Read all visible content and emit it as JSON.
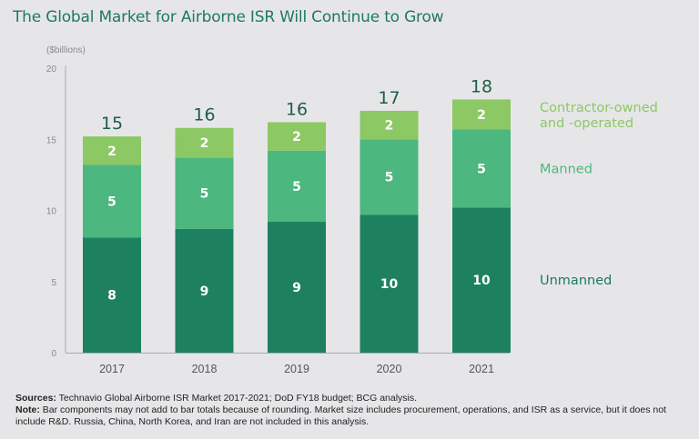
{
  "chart_data": {
    "type": "bar",
    "stacked": true,
    "title": "The Global Market for Airborne ISR Will Continue to Grow",
    "ylabel": "($billions)",
    "xlabel": "",
    "ylim": [
      0,
      20
    ],
    "yticks": [
      0,
      5,
      10,
      15,
      20
    ],
    "grid": false,
    "legend_position": "right",
    "categories": [
      "2017",
      "2018",
      "2019",
      "2020",
      "2021"
    ],
    "series": [
      {
        "name": "Unmanned",
        "color": "#1d8160",
        "label_color": "#1d7a5a",
        "values": [
          8.1,
          8.7,
          9.2,
          9.7,
          10.2
        ],
        "labels": [
          "8",
          "9",
          "9",
          "10",
          "10"
        ]
      },
      {
        "name": "Manned",
        "color": "#4cb77f",
        "label_color": "#4cb77f",
        "values": [
          5.1,
          5.0,
          5.0,
          5.3,
          5.5
        ],
        "labels": [
          "5",
          "5",
          "5",
          "5",
          "5"
        ]
      },
      {
        "name": "Contractor-owned and -operated",
        "legend_lines": [
          "Contractor-owned",
          "and -operated"
        ],
        "color": "#8cc864",
        "label_color": "#8cc864",
        "values": [
          2.0,
          2.1,
          2.0,
          2.0,
          2.1
        ],
        "labels": [
          "2",
          "2",
          "2",
          "2",
          "2"
        ]
      }
    ],
    "totals": [
      "15",
      "16",
      "16",
      "17",
      "18"
    ]
  },
  "footer": {
    "sources_label": "Sources:",
    "sources_text": " Technavio Global Airborne ISR Market 2017-2021; DoD FY18 budget; BCG analysis.",
    "note_label": "Note:",
    "note_text": " Bar components may not add to bar totals because of rounding. Market size includes procurement, operations, and ISR as a service, but it does not include R&D. Russia, China, North Korea, and Iran are not included in this analysis."
  },
  "colors": {
    "title": "#1f7a5b",
    "total_label": "#1e5e47",
    "axis": "#a9a9ab",
    "tick_label": "#8a8a8c",
    "background": "#e6e6e8"
  }
}
